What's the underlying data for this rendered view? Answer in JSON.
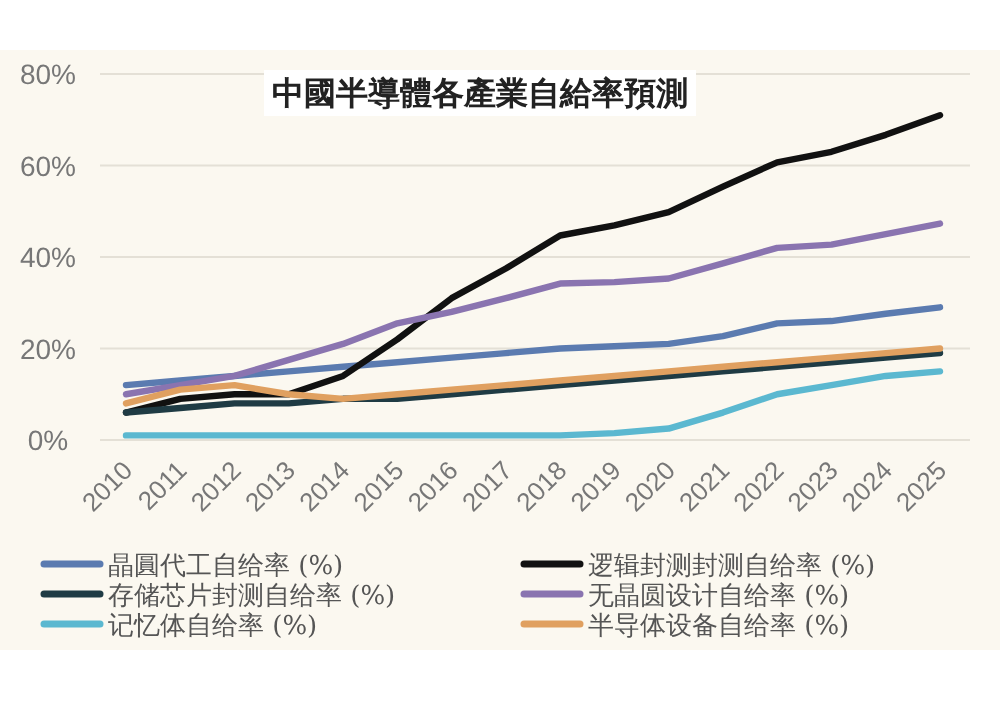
{
  "chart_data": {
    "type": "line",
    "title": "中國半導體各產業自給率預測",
    "categories": [
      "2010",
      "2011",
      "2012",
      "2013",
      "2014",
      "2015",
      "2016",
      "2017",
      "2018",
      "2019",
      "2020",
      "2021",
      "2022",
      "2023",
      "2024",
      "2025"
    ],
    "series": [
      {
        "name": "晶圓代工自给率 (%)",
        "color": "#5b7bb0",
        "values": [
          12,
          13,
          14,
          15,
          16,
          17,
          18,
          19,
          20,
          20.5,
          21,
          22.7,
          25.5,
          26,
          27.6,
          29
        ]
      },
      {
        "name": "逻辑封测封测自给率 (%)",
        "color": "#111111",
        "values": [
          6,
          9,
          10,
          10,
          14,
          22,
          31,
          37.5,
          44.7,
          46.9,
          49.8,
          55.4,
          60.7,
          63,
          66.7,
          71
        ]
      },
      {
        "name": "存储芯片封测自给率 (%)",
        "color": "#1f3b44",
        "values": [
          6,
          7,
          8,
          8,
          9,
          9,
          10,
          11,
          12,
          13,
          14,
          15,
          16,
          17,
          18,
          19
        ]
      },
      {
        "name": "无晶圆设计自给率 (%)",
        "color": "#8a74b0",
        "values": [
          10,
          12,
          14,
          17.5,
          21,
          25.5,
          28,
          31,
          34.2,
          34.5,
          35.3,
          38.6,
          42,
          42.7,
          45,
          47.3
        ]
      },
      {
        "name": "记忆体自给率 (%)",
        "color": "#5bb8d0",
        "values": [
          1,
          1,
          1,
          1,
          1,
          1,
          1,
          1,
          1,
          1.5,
          2.5,
          6,
          10,
          12,
          14,
          15
        ]
      },
      {
        "name": "半导体设备自给率 (%)",
        "color": "#e0a060",
        "values": [
          8,
          11,
          12,
          10,
          9,
          10,
          11,
          12,
          13,
          14,
          15,
          16,
          17,
          18,
          19,
          20
        ]
      }
    ],
    "ylim": [
      0,
      80
    ],
    "yticks": [
      {
        "value": 0,
        "label": "0%"
      },
      {
        "value": 20,
        "label": "20%"
      },
      {
        "value": 40,
        "label": "40%"
      },
      {
        "value": 60,
        "label": "60%"
      },
      {
        "value": 80,
        "label": "80%"
      }
    ],
    "grid": "y",
    "legend": "bottom",
    "line_style": "solid"
  }
}
